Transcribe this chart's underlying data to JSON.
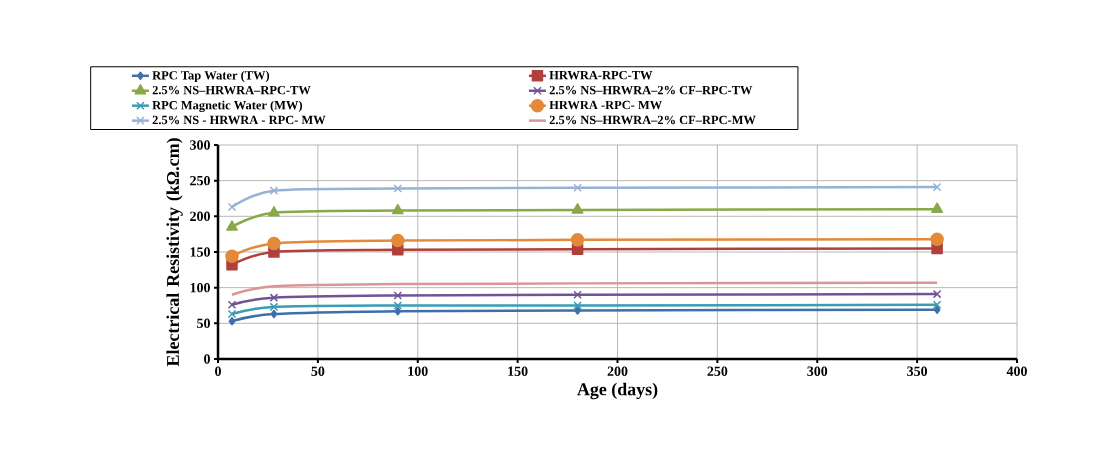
{
  "chart_data": {
    "type": "line",
    "xlabel": "Age (days)",
    "ylabel": "Electrical Resistivity (kΩ.cm)",
    "x": [
      7,
      28,
      90,
      180,
      360
    ],
    "xlim": [
      0,
      400
    ],
    "xticks": [
      0,
      50,
      100,
      150,
      200,
      250,
      300,
      350,
      400
    ],
    "ylim": [
      0,
      300
    ],
    "yticks": [
      0,
      50,
      100,
      150,
      200,
      250,
      300
    ],
    "grid": true,
    "legend": "top",
    "series": [
      {
        "name": "RPC Tap Water (TW)",
        "color": "#3f6fab",
        "marker": "diamond",
        "values": [
          53,
          63,
          67,
          68,
          69
        ]
      },
      {
        "name": "HRWRA-RPC-TW",
        "color": "#b0403c",
        "marker": "square",
        "values": [
          132,
          150,
          153,
          154,
          155
        ]
      },
      {
        "name": "2.5% NS–HRWRA–RPC-TW",
        "color": "#88a94a",
        "marker": "triangle",
        "values": [
          185,
          205,
          208,
          209,
          210
        ]
      },
      {
        "name": "2.5% NS–HRWRA–2% CF–RPC-TW",
        "color": "#6f5497",
        "marker": "cross",
        "values": [
          76,
          86,
          89,
          90,
          91
        ]
      },
      {
        "name": "RPC Magnetic Water (MW)",
        "color": "#3a9cb5",
        "marker": "cross",
        "values": [
          63,
          73,
          75,
          75,
          76
        ]
      },
      {
        "name": "HRWRA -RPC- MW",
        "color": "#e38a3a",
        "marker": "circle",
        "values": [
          144,
          162,
          166,
          167,
          168
        ]
      },
      {
        "name": "2.5% NS - HRWRA - RPC- MW",
        "color": "#95b3d7",
        "marker": "cross",
        "values": [
          213,
          236,
          239,
          240,
          241
        ]
      },
      {
        "name": "2.5% NS–HRWRA–2% CF–RPC-MW",
        "color": "#d99694",
        "marker": "none",
        "values": [
          90,
          102,
          105,
          106,
          107
        ]
      }
    ]
  }
}
